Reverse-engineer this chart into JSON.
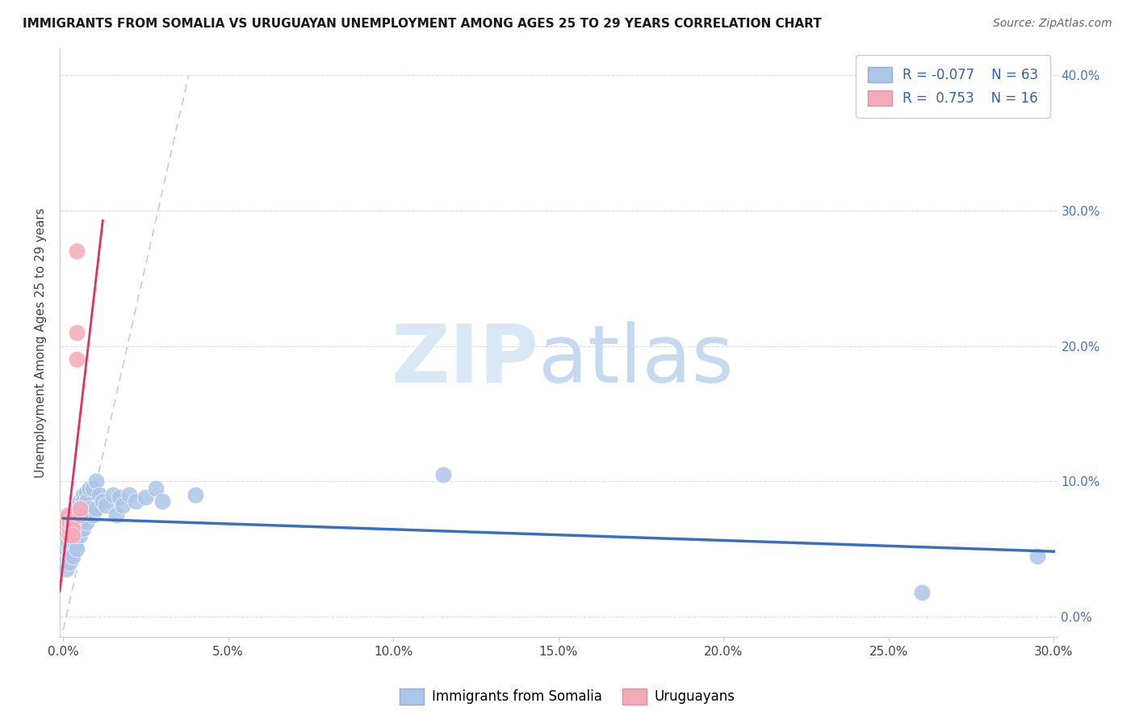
{
  "title": "IMMIGRANTS FROM SOMALIA VS URUGUAYAN UNEMPLOYMENT AMONG AGES 25 TO 29 YEARS CORRELATION CHART",
  "source": "Source: ZipAtlas.com",
  "ylabel": "Unemployment Among Ages 25 to 29 years",
  "xlim": [
    -0.001,
    0.301
  ],
  "ylim": [
    -0.015,
    0.42
  ],
  "xticks": [
    0.0,
    0.05,
    0.1,
    0.15,
    0.2,
    0.25,
    0.3
  ],
  "yticks": [
    0.0,
    0.1,
    0.2,
    0.3,
    0.4
  ],
  "color_somalia": "#adc6e8",
  "color_uruguayan": "#f5aaba",
  "trend_color_somalia": "#3b6fbe",
  "trend_color_uruguayan": "#e03060",
  "watermark_zip": "ZIP",
  "watermark_atlas": "atlas",
  "somalia_x": [
    0.0005,
    0.001,
    0.001,
    0.001,
    0.001,
    0.0015,
    0.0015,
    0.002,
    0.002,
    0.002,
    0.002,
    0.002,
    0.0025,
    0.0025,
    0.003,
    0.003,
    0.003,
    0.003,
    0.003,
    0.003,
    0.0035,
    0.0035,
    0.004,
    0.004,
    0.004,
    0.004,
    0.004,
    0.004,
    0.005,
    0.005,
    0.005,
    0.005,
    0.005,
    0.006,
    0.006,
    0.006,
    0.006,
    0.006,
    0.007,
    0.007,
    0.007,
    0.008,
    0.008,
    0.009,
    0.009,
    0.01,
    0.01,
    0.011,
    0.012,
    0.013,
    0.015,
    0.016,
    0.017,
    0.018,
    0.02,
    0.022,
    0.025,
    0.028,
    0.03,
    0.04,
    0.115,
    0.26,
    0.295
  ],
  "somalia_y": [
    0.04,
    0.055,
    0.06,
    0.05,
    0.035,
    0.065,
    0.055,
    0.07,
    0.06,
    0.05,
    0.045,
    0.04,
    0.068,
    0.058,
    0.075,
    0.07,
    0.065,
    0.06,
    0.055,
    0.045,
    0.078,
    0.055,
    0.08,
    0.075,
    0.07,
    0.065,
    0.06,
    0.05,
    0.085,
    0.08,
    0.075,
    0.07,
    0.06,
    0.09,
    0.085,
    0.08,
    0.075,
    0.065,
    0.092,
    0.085,
    0.07,
    0.095,
    0.08,
    0.095,
    0.075,
    0.1,
    0.08,
    0.09,
    0.085,
    0.082,
    0.09,
    0.075,
    0.088,
    0.082,
    0.09,
    0.085,
    0.088,
    0.095,
    0.085,
    0.09,
    0.105,
    0.018,
    0.045
  ],
  "uruguayan_x": [
    0.0005,
    0.001,
    0.001,
    0.0015,
    0.002,
    0.002,
    0.002,
    0.003,
    0.003,
    0.003,
    0.003,
    0.004,
    0.004,
    0.004,
    0.005,
    0.005
  ],
  "uruguayan_y": [
    0.065,
    0.068,
    0.072,
    0.075,
    0.06,
    0.065,
    0.07,
    0.068,
    0.072,
    0.065,
    0.06,
    0.19,
    0.21,
    0.27,
    0.075,
    0.08
  ],
  "legend_text1_r": "R = -0.077",
  "legend_text1_n": "N = 63",
  "legend_text2_r": "R =  0.753",
  "legend_text2_n": "N = 16"
}
